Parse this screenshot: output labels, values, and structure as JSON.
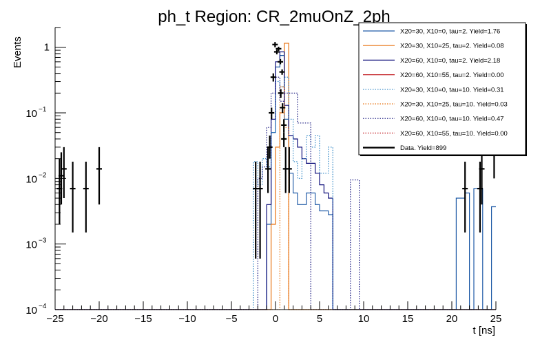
{
  "chart_data": {
    "type": "step-histogram",
    "title": "ph_t Region: CR_2muOnZ_2ph",
    "xlabel": "t [ns]",
    "ylabel": "Events",
    "xlim": [
      -25,
      25
    ],
    "ylim": [
      0.0001,
      2
    ],
    "y_scale": "log",
    "x_ticks": [
      -25,
      -20,
      -15,
      -10,
      -5,
      0,
      5,
      10,
      15,
      20,
      25
    ],
    "x_tick_labels": [
      "−25",
      "−20",
      "−15",
      "−10",
      "−5",
      "0",
      "5",
      "10",
      "15",
      "20",
      "25"
    ],
    "y_ticks": [
      {
        "value": 0.0001,
        "base": "10",
        "exp": "−4"
      },
      {
        "value": 0.001,
        "base": "10",
        "exp": "−3"
      },
      {
        "value": 0.01,
        "base": "10",
        "exp": "−2"
      },
      {
        "value": 0.1,
        "base": "10",
        "exp": "−1"
      },
      {
        "value": 1,
        "label": "1"
      }
    ],
    "legend_position": "top-right",
    "series": [
      {
        "name": "X20=30, X10=0, tau=2. Yield=1.76",
        "color": "#1f5aa6",
        "style": "solid",
        "points": [
          [
            -25,
            0.0001
          ],
          [
            -1.5,
            0.0001
          ],
          [
            -1.0,
            0.002
          ],
          [
            -0.5,
            0.05
          ],
          [
            0,
            0.5
          ],
          [
            0.5,
            0.75
          ],
          [
            1.0,
            0.08
          ],
          [
            1.5,
            0.012
          ],
          [
            2.0,
            0.006
          ],
          [
            2.5,
            0.004
          ],
          [
            3.0,
            0.004
          ],
          [
            3.5,
            0.006
          ],
          [
            4.0,
            0.006
          ],
          [
            4.5,
            0.004
          ],
          [
            5.0,
            0.0032
          ],
          [
            5.5,
            0.0032
          ],
          [
            6.0,
            0.0028
          ],
          [
            6.5,
            0.0001
          ],
          [
            20.0,
            0.0001
          ],
          [
            20.5,
            0.005
          ],
          [
            21.0,
            0.005
          ],
          [
            21.5,
            0.006
          ],
          [
            22.0,
            0.0001
          ],
          [
            22.5,
            0.007
          ],
          [
            23.0,
            0.007
          ],
          [
            23.5,
            0.0001
          ],
          [
            24.5,
            0.0037
          ],
          [
            25,
            0.0037
          ]
        ]
      },
      {
        "name": "X20=30, X10=25, tau=2. Yield=0.08",
        "color": "#e8700e",
        "style": "solid",
        "points": [
          [
            -25,
            0.0001
          ],
          [
            -0.5,
            0.0001
          ],
          [
            -0.5,
            0.002
          ],
          [
            0,
            0.03
          ],
          [
            0.5,
            0.1
          ],
          [
            1.0,
            1.15
          ],
          [
            1.5,
            0.0001
          ],
          [
            25,
            0.0001
          ]
        ]
      },
      {
        "name": "X20=60, X10=0, tau=2. Yield=2.18",
        "color": "#0a0a78",
        "style": "solid",
        "points": [
          [
            -25,
            0.0001
          ],
          [
            -1.0,
            0.0001
          ],
          [
            -1.0,
            0.004
          ],
          [
            -0.5,
            0.08
          ],
          [
            0,
            0.6
          ],
          [
            0.5,
            0.85
          ],
          [
            1.0,
            0.13
          ],
          [
            1.5,
            0.045
          ],
          [
            2.0,
            0.04
          ],
          [
            2.5,
            0.03
          ],
          [
            3.0,
            0.02
          ],
          [
            3.5,
            0.017
          ],
          [
            4.0,
            0.017
          ],
          [
            4.5,
            0.012
          ],
          [
            5.0,
            0.008
          ],
          [
            5.5,
            0.006
          ],
          [
            6.0,
            0.005
          ],
          [
            6.5,
            0.0001
          ],
          [
            25,
            0.0001
          ]
        ]
      },
      {
        "name": "X20=60, X10=55, tau=2. Yield=0.00",
        "color": "#c0171c",
        "style": "solid",
        "points": []
      },
      {
        "name": "X20=30, X10=0, tau=10. Yield=0.31",
        "color": "#2680c2",
        "style": "dotted",
        "points": [
          [
            -25,
            0.0001
          ],
          [
            -2.5,
            0.0001
          ],
          [
            -2.5,
            0.018
          ],
          [
            -2.0,
            0.008
          ],
          [
            -1.5,
            0.02
          ],
          [
            -1.0,
            0.015
          ],
          [
            -0.5,
            0.05
          ],
          [
            0,
            0.3
          ],
          [
            0.5,
            0.25
          ],
          [
            1.0,
            0.35
          ],
          [
            1.5,
            0.08
          ],
          [
            2.0,
            0.018
          ],
          [
            2.5,
            0.01
          ],
          [
            3.0,
            0.02
          ],
          [
            3.5,
            0.045
          ],
          [
            4.0,
            0.03
          ],
          [
            4.5,
            0.045
          ],
          [
            5.0,
            0.012
          ],
          [
            5.5,
            0.012
          ],
          [
            6.0,
            0.03
          ],
          [
            6.5,
            0.0001
          ],
          [
            25,
            0.0001
          ]
        ]
      },
      {
        "name": "X20=30, X10=25, tau=10. Yield=0.03",
        "color": "#e8700e",
        "style": "dotted",
        "points": [
          [
            -25,
            0.0001
          ],
          [
            0.5,
            0.0001
          ],
          [
            0.5,
            0.25
          ],
          [
            1.0,
            0.06
          ],
          [
            1.5,
            0.0001
          ],
          [
            25,
            0.0001
          ]
        ]
      },
      {
        "name": "X20=60, X10=0, tau=10. Yield=0.47",
        "color": "#0a0a78",
        "style": "dotted",
        "points": [
          [
            -25,
            0.0001
          ],
          [
            -2.0,
            0.0001
          ],
          [
            -2.0,
            0.01
          ],
          [
            -1.5,
            0.015
          ],
          [
            -1.0,
            0.06
          ],
          [
            -0.5,
            0.2
          ],
          [
            0,
            0.35
          ],
          [
            0.5,
            0.15
          ],
          [
            1.0,
            0.2
          ],
          [
            1.5,
            0.2
          ],
          [
            2.0,
            0.2
          ],
          [
            2.5,
            0.07
          ],
          [
            3.0,
            0.07
          ],
          [
            3.5,
            0.07
          ],
          [
            4.0,
            0.0001
          ],
          [
            8.5,
            0.0001
          ],
          [
            8.5,
            0.0095
          ],
          [
            9.5,
            0.0095
          ],
          [
            9.5,
            0.0001
          ],
          [
            25,
            0.0001
          ]
        ]
      },
      {
        "name": "X20=60, X10=55, tau=10. Yield=0.00",
        "color": "#c0171c",
        "style": "dotted",
        "points": []
      }
    ],
    "data_series": {
      "name": "Data. Yield=899",
      "color": "#000000",
      "points": [
        {
          "x": -24.5,
          "y": 0.007,
          "lo": 0.002,
          "hi": 0.02
        },
        {
          "x": -24.3,
          "y": 0.011,
          "lo": 0.004,
          "hi": 0.025
        },
        {
          "x": -24.0,
          "y": 0.014,
          "lo": 0.005,
          "hi": 0.03
        },
        {
          "x": -23.0,
          "y": 0.007,
          "lo": 0.0015,
          "hi": 0.018
        },
        {
          "x": -21.5,
          "y": 0.007,
          "lo": 0.0015,
          "hi": 0.018
        },
        {
          "x": -20.0,
          "y": 0.014,
          "lo": 0.004,
          "hi": 0.03
        },
        {
          "x": -2.25,
          "y": 0.007,
          "lo": 0.0006,
          "hi": 0.018
        },
        {
          "x": -1.75,
          "y": 0.007,
          "lo": 0.0006,
          "hi": 0.018
        },
        {
          "x": -0.85,
          "y": 0.014,
          "lo": 0.006,
          "hi": 0.03
        },
        {
          "x": -0.65,
          "y": 0.03,
          "lo": 0.02,
          "hi": 0.045
        },
        {
          "x": -0.45,
          "y": 0.1,
          "lo": 0.08,
          "hi": 0.12
        },
        {
          "x": -0.25,
          "y": 0.35,
          "lo": 0.3,
          "hi": 0.4
        },
        {
          "x": -0.05,
          "y": 1.1,
          "lo": 1.0,
          "hi": 1.2
        },
        {
          "x": 0.15,
          "y": 0.85,
          "lo": 0.78,
          "hi": 0.92
        },
        {
          "x": 0.35,
          "y": 0.95,
          "lo": 0.88,
          "hi": 1.02
        },
        {
          "x": 0.55,
          "y": 0.6,
          "lo": 0.55,
          "hi": 0.66
        },
        {
          "x": 0.75,
          "y": 0.42,
          "lo": 0.38,
          "hi": 0.46
        },
        {
          "x": 0.6,
          "y": 0.2,
          "lo": 0.17,
          "hi": 0.23
        },
        {
          "x": 0.8,
          "y": 0.12,
          "lo": 0.1,
          "hi": 0.14
        },
        {
          "x": 0.95,
          "y": 0.065,
          "lo": 0.05,
          "hi": 0.08
        },
        {
          "x": 0.95,
          "y": 0.04,
          "lo": 0.03,
          "hi": 0.05
        },
        {
          "x": 1.15,
          "y": 0.014,
          "lo": 0.006,
          "hi": 0.03
        },
        {
          "x": 1.55,
          "y": 0.014,
          "lo": 0.006,
          "hi": 0.03
        },
        {
          "x": 21.5,
          "y": 0.007,
          "lo": 0.0015,
          "hi": 0.018
        },
        {
          "x": 23.2,
          "y": 0.007,
          "lo": 0.0015,
          "hi": 0.018
        },
        {
          "x": 23.4,
          "y": 0.014,
          "lo": 0.004,
          "hi": 0.03
        },
        {
          "x": 24.8,
          "y": 0.025,
          "lo": 0.01,
          "hi": 0.045
        }
      ]
    }
  }
}
